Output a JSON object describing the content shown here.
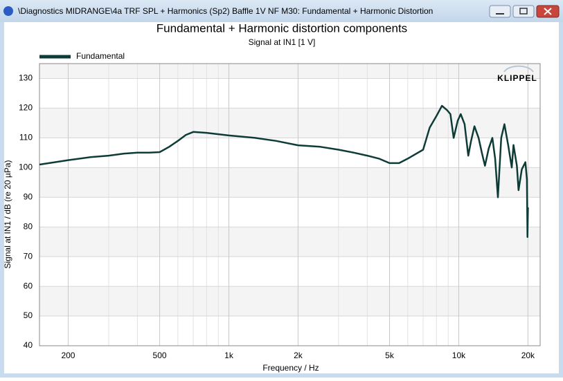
{
  "window_title": "\\Diagnostics MIDRANGE\\4a TRF SPL + Harmonics (Sp2) Baffle 1V NF M30: Fundamental + Harmonic Distortion",
  "logo": "KLIPPEL",
  "chart_data": {
    "type": "line",
    "title": "Fundamental + Harmonic distortion components",
    "subtitle": "Signal at IN1 [1 V]",
    "x_label": "Frequency / Hz",
    "y_label": "Signal at IN1 / dB (re 20 µPa)",
    "x_log": true,
    "grid": true,
    "legend": "top-left",
    "xlim": [
      150,
      22600
    ],
    "ylim": [
      40,
      135
    ],
    "xticks": [
      200,
      500,
      {
        "value": 1000,
        "label": "1k"
      },
      {
        "value": 2000,
        "label": "2k"
      },
      {
        "value": 5000,
        "label": "5k"
      },
      {
        "value": 10000,
        "label": "10k"
      },
      {
        "value": 20000,
        "label": "20k"
      }
    ],
    "minor_xticks": [
      300,
      400,
      600,
      700,
      800,
      900,
      3000,
      4000,
      6000,
      7000,
      8000,
      9000
    ],
    "yticks": [
      40,
      50,
      60,
      70,
      80,
      90,
      100,
      110,
      120,
      130
    ],
    "x": [
      150,
      200,
      250,
      300,
      350,
      400,
      450,
      500,
      550,
      600,
      650,
      700,
      800,
      1000,
      1300,
      1600,
      2000,
      2500,
      3000,
      3500,
      4000,
      4500,
      5000,
      5500,
      6000,
      7000,
      7470,
      8000,
      8450,
      8900,
      9200,
      9500,
      9900,
      10200,
      10600,
      11000,
      11300,
      11700,
      12200,
      12600,
      13000,
      13500,
      14000,
      14400,
      14800,
      15300,
      15800,
      16400,
      17000,
      17300,
      17900,
      18200,
      18800,
      19500,
      19800,
      19900,
      20000
    ],
    "series": [
      {
        "name": "Fundamental",
        "color": "#0d3b36",
        "values": [
          101,
          102.5,
          103.5,
          104,
          104.7,
          105,
          105,
          105.2,
          107,
          109,
          111,
          112,
          111.7,
          110.8,
          110,
          109,
          107.5,
          107,
          106,
          105,
          104,
          103,
          101.5,
          101.5,
          103,
          106,
          113.4,
          117.4,
          120.8,
          119.3,
          118,
          110,
          115.8,
          118,
          114.6,
          104,
          108.8,
          113.9,
          110,
          105,
          100.6,
          106.4,
          110,
          103,
          90,
          110,
          114.6,
          107.6,
          100,
          107.6,
          100.6,
          92.4,
          99.4,
          101.8,
          96,
          76.6,
          86.6
        ]
      }
    ]
  }
}
